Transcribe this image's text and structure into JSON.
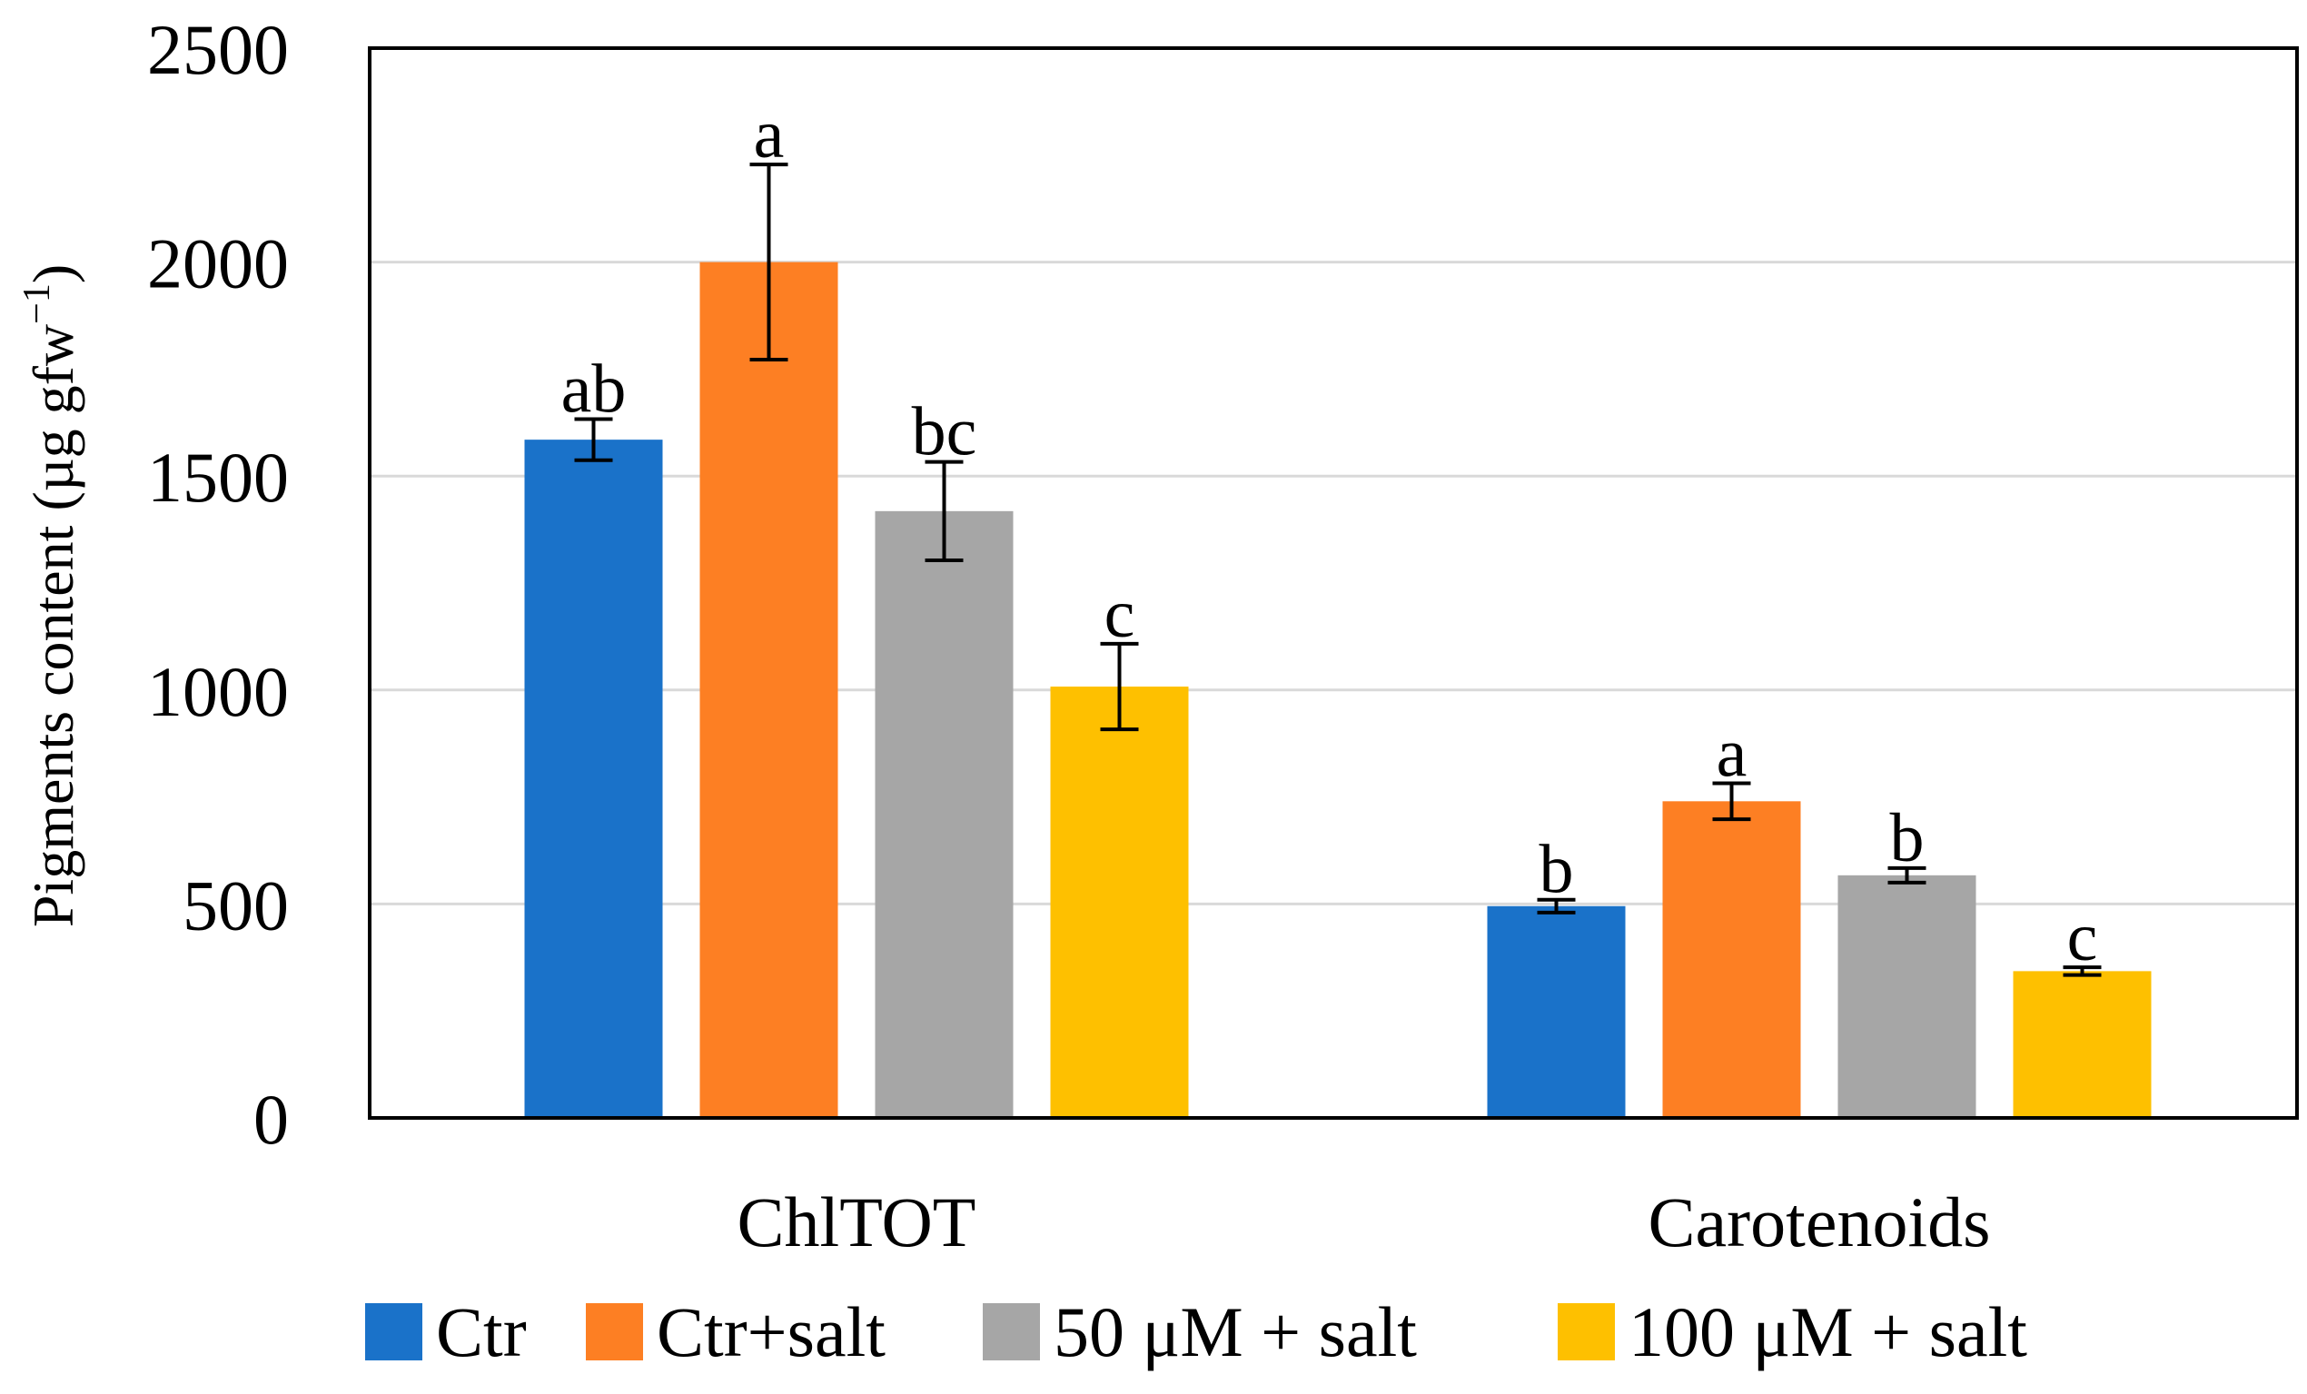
{
  "chart_data": {
    "type": "bar",
    "title": "",
    "xlabel": "",
    "ylabel_main": "Pigments content (µg gfw",
    "ylabel_sup": "−1",
    "ylabel_close": ")",
    "ylim": [
      0,
      2500
    ],
    "yticks": [
      0,
      500,
      1000,
      1500,
      2000,
      2500
    ],
    "grid": true,
    "legend_position": "bottom",
    "categories": [
      "ChlTOT",
      "Carotenoids"
    ],
    "series": [
      {
        "name": "Ctr",
        "color": "#1a72c9",
        "values": [
          1585,
          495
        ],
        "errors": [
          48,
          15
        ],
        "letters": [
          "ab",
          "b"
        ]
      },
      {
        "name": "Ctr+salt",
        "color": "#fd7f23",
        "values": [
          2000,
          740
        ],
        "errors": [
          228,
          42
        ],
        "letters": [
          "a",
          "a"
        ]
      },
      {
        "name": "50 μM + salt",
        "color": "#a6a6a6",
        "values": [
          1418,
          567
        ],
        "errors": [
          115,
          17
        ],
        "letters": [
          "bc",
          "b"
        ]
      },
      {
        "name": "100 μM + salt",
        "color": "#fec000",
        "values": [
          1008,
          343
        ],
        "errors": [
          100,
          9
        ],
        "letters": [
          "c",
          "c"
        ]
      }
    ]
  }
}
